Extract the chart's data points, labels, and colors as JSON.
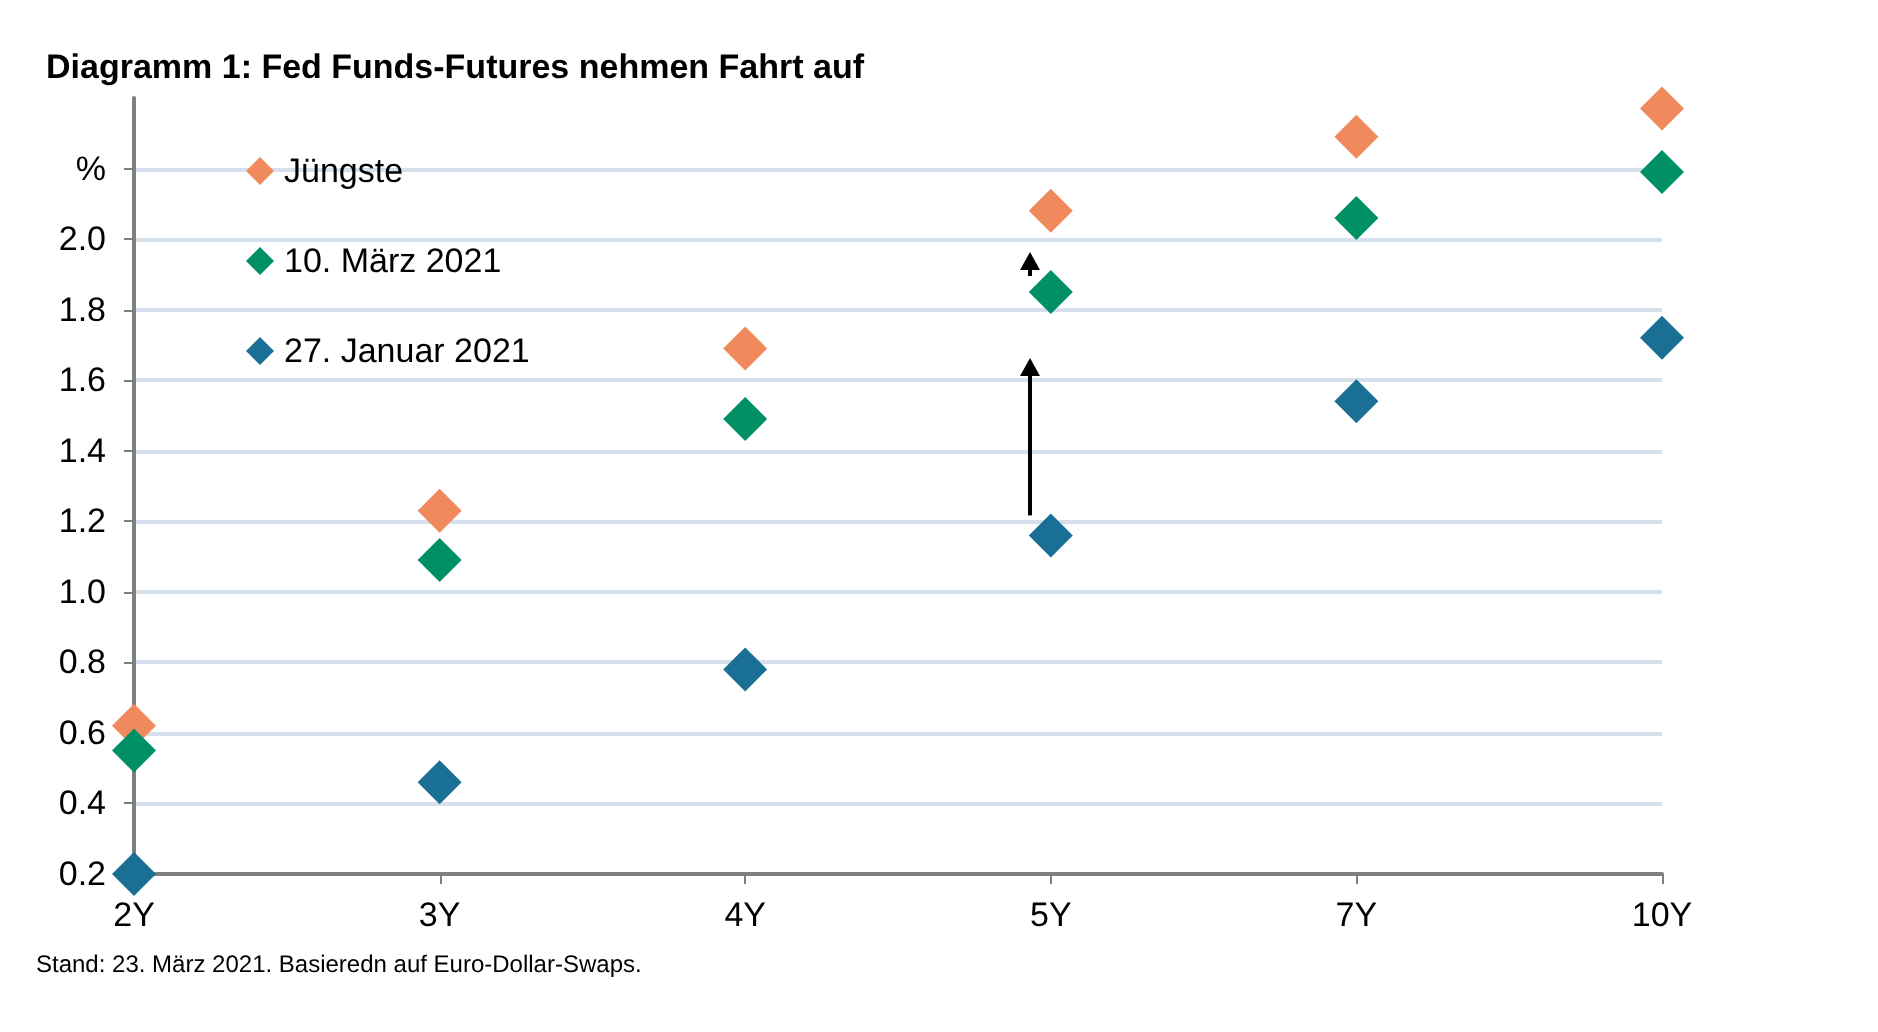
{
  "chart_data": {
    "type": "scatter",
    "title": "Diagramm 1: Fed Funds-Futures nehmen Fahrt auf",
    "categories": [
      "2Y",
      "3Y",
      "4Y",
      "5Y",
      "7Y",
      "10Y"
    ],
    "series": [
      {
        "name": "Jüngste",
        "color": "#f08a5d",
        "values": [
          0.62,
          1.23,
          1.69,
          2.08,
          2.29,
          2.37
        ]
      },
      {
        "name": "10. März 2021",
        "color": "#009065",
        "values": [
          0.55,
          1.09,
          1.49,
          1.85,
          2.06,
          2.19
        ]
      },
      {
        "name": "27. Januar 2021",
        "color": "#1a6f94",
        "values": [
          0.2,
          0.46,
          0.78,
          1.16,
          1.54,
          1.72
        ]
      }
    ],
    "ylim": [
      0.2,
      2.4
    ],
    "yticks": [
      0.2,
      0.4,
      0.6,
      0.8,
      {
        "value": 1,
        "label": "1.0"
      },
      1.2,
      1.4,
      1.6,
      1.8,
      {
        "value": 2,
        "label": "2.0"
      },
      {
        "value": 2.2,
        "label": "%"
      }
    ],
    "marker": "diamond",
    "grid": "y",
    "legend": "top left",
    "annotations": [
      "Stand: 23. März 2021. Basieredn auf Euro-Dollar-Swaps."
    ]
  }
}
